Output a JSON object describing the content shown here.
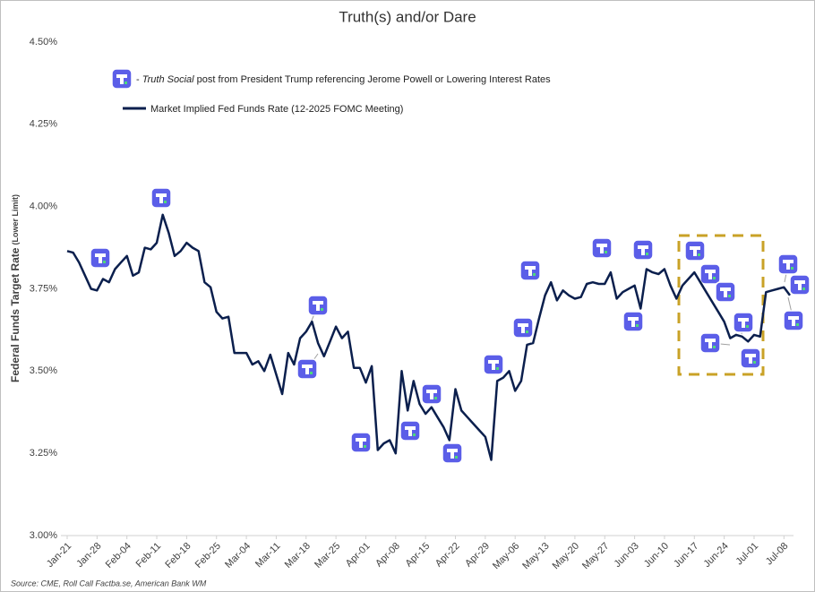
{
  "chart_data": {
    "type": "line",
    "title": "Truth(s) and/or Dare",
    "y_label": "Federal Funds Target Rate",
    "y_label_note": "(Lower Limit)",
    "annotation_legend": {
      "prefix": "- ",
      "italic": "Truth Social",
      "text": " post from President Trump referencing Jerome Powell or Lowering Interest Rates"
    },
    "source": "Source: CME, Roll Call Factba.se, American Bank WM",
    "categories": [
      "Jan-21",
      null,
      null,
      null,
      null,
      "Jan-28",
      null,
      null,
      null,
      null,
      "Feb-04",
      null,
      null,
      null,
      null,
      "Feb-11",
      null,
      null,
      null,
      null,
      "Feb-18",
      null,
      null,
      null,
      null,
      "Feb-25",
      null,
      null,
      null,
      null,
      "Mar-04",
      null,
      null,
      null,
      null,
      "Mar-11",
      null,
      null,
      null,
      null,
      "Mar-18",
      null,
      null,
      null,
      null,
      "Mar-25",
      null,
      null,
      null,
      null,
      "Apr-01",
      null,
      null,
      null,
      null,
      "Apr-08",
      null,
      null,
      null,
      null,
      "Apr-15",
      null,
      null,
      null,
      null,
      "Apr-22",
      null,
      null,
      null,
      null,
      "Apr-29",
      null,
      null,
      null,
      null,
      "May-06",
      null,
      null,
      null,
      null,
      "May-13",
      null,
      null,
      null,
      null,
      "May-20",
      null,
      null,
      null,
      null,
      "May-27",
      null,
      null,
      null,
      null,
      "Jun-03",
      null,
      null,
      null,
      null,
      "Jun-10",
      null,
      null,
      null,
      null,
      "Jun-17",
      null,
      null,
      null,
      null,
      "Jun-24",
      null,
      null,
      null,
      null,
      "Jul-01",
      null,
      null,
      null,
      null,
      "Jul-08",
      null
    ],
    "series": [
      {
        "name": "Market Implied Fed Funds Rate (12-2025 FOMC Meeting)",
        "color": "#0b1f4d",
        "values": [
          3.865,
          3.86,
          3.83,
          3.79,
          3.75,
          3.745,
          3.78,
          3.77,
          3.81,
          3.83,
          3.85,
          3.79,
          3.8,
          3.875,
          3.87,
          3.89,
          3.975,
          3.92,
          3.85,
          3.865,
          3.89,
          3.875,
          3.865,
          3.77,
          3.755,
          3.68,
          3.66,
          3.665,
          3.555,
          3.555,
          3.555,
          3.52,
          3.53,
          3.5,
          3.55,
          3.49,
          3.43,
          3.555,
          3.52,
          3.6,
          3.62,
          3.65,
          3.585,
          3.545,
          3.59,
          3.635,
          3.6,
          3.62,
          3.51,
          3.51,
          3.465,
          3.515,
          3.26,
          3.28,
          3.29,
          3.25,
          3.5,
          3.38,
          3.47,
          3.4,
          3.37,
          3.39,
          3.36,
          3.33,
          3.29,
          3.445,
          3.38,
          3.36,
          3.34,
          3.32,
          3.3,
          3.23,
          3.47,
          3.48,
          3.5,
          3.44,
          3.47,
          3.58,
          3.585,
          3.66,
          3.73,
          3.77,
          3.715,
          3.745,
          3.73,
          3.72,
          3.725,
          3.765,
          3.77,
          3.765,
          3.765,
          3.8,
          3.72,
          3.74,
          3.75,
          3.76,
          3.69,
          3.81,
          3.8,
          3.795,
          3.81,
          3.76,
          3.72,
          3.76,
          3.78,
          3.8,
          3.77,
          3.74,
          3.71,
          3.68,
          3.65,
          3.6,
          3.61,
          3.605,
          3.59,
          3.61,
          3.605,
          3.74,
          3.745,
          3.75,
          3.755,
          3.73
        ]
      }
    ],
    "ylim": [
      3.0,
      4.5
    ],
    "yticks": [
      {
        "value": 3.0,
        "label": "3.00%"
      },
      {
        "value": 3.25,
        "label": "3.25%"
      },
      {
        "value": 3.5,
        "label": "3.50%"
      },
      {
        "value": 3.75,
        "label": "3.75%"
      },
      {
        "value": 4.0,
        "label": "4.00%"
      },
      {
        "value": 4.25,
        "label": "4.25%"
      },
      {
        "value": 4.5,
        "label": "4.50%"
      }
    ],
    "grid": false
  }
}
